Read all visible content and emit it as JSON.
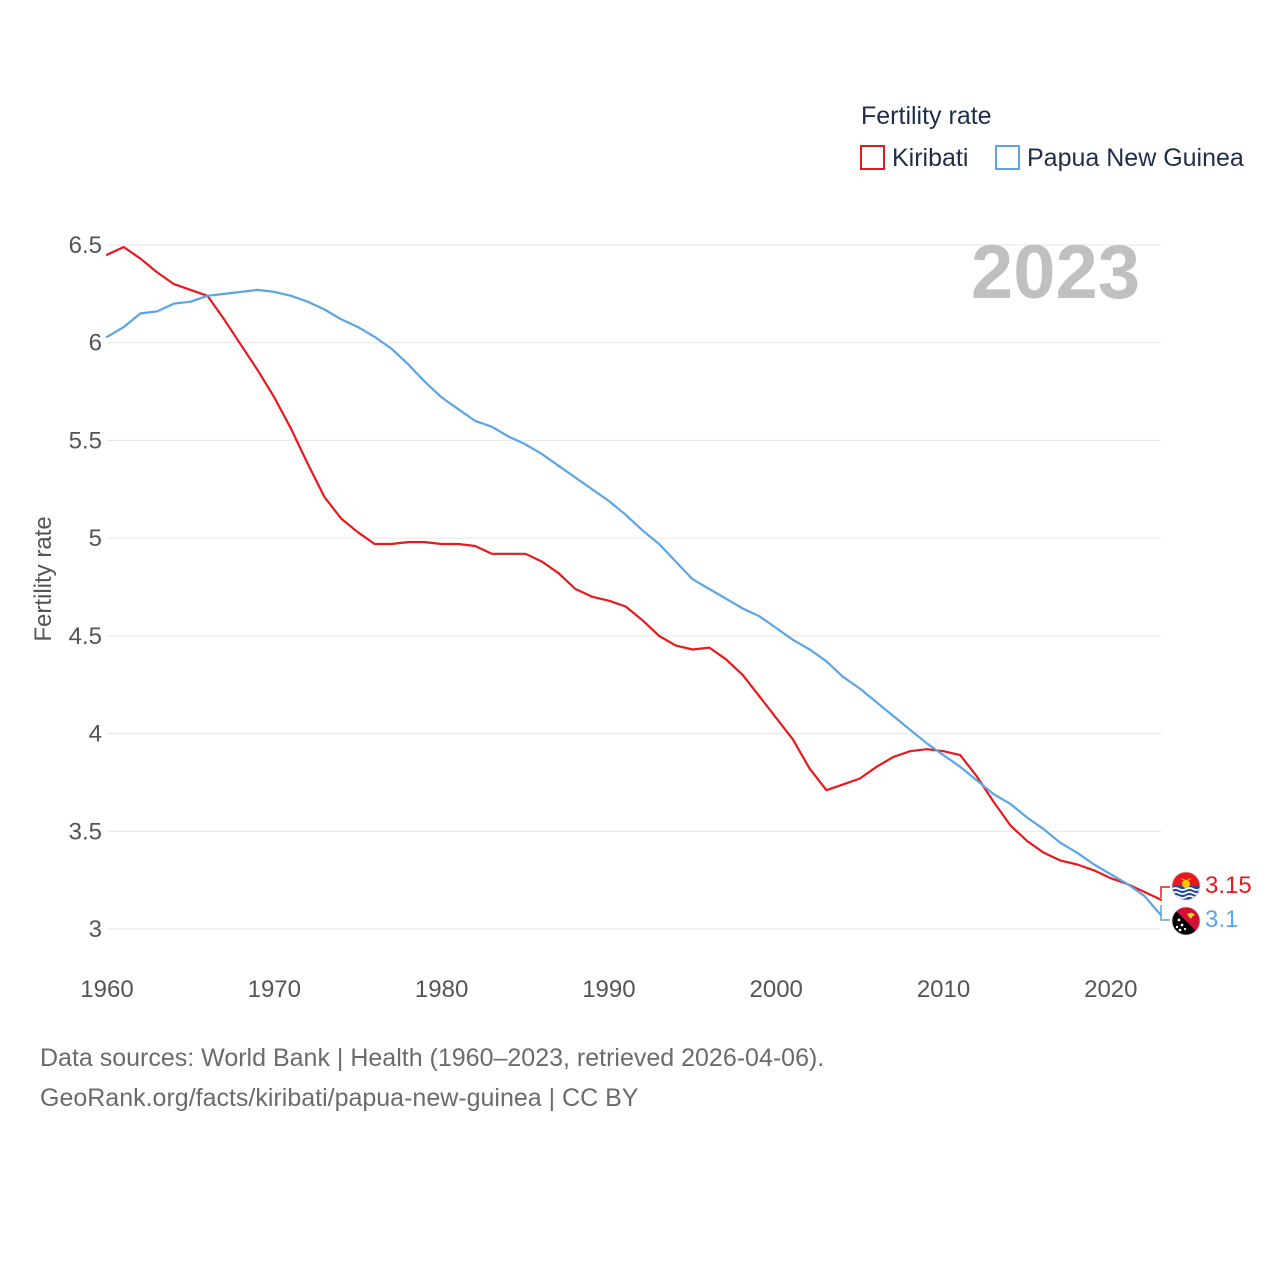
{
  "chart_data": {
    "type": "line",
    "title": "Fertility rate",
    "year_label": "2023",
    "ylabel": "Fertility rate",
    "xlabel": "",
    "xlim": [
      1960,
      2023
    ],
    "ylim": [
      3,
      6.5
    ],
    "x_ticks": [
      "1960",
      "1970",
      "1980",
      "1990",
      "2000",
      "2010",
      "2020"
    ],
    "y_ticks": [
      "3",
      "3.5",
      "4",
      "4.5",
      "5",
      "5.5",
      "6",
      "6.5"
    ],
    "grid": true,
    "legend_position": "top-right",
    "x": [
      1960,
      1961,
      1962,
      1963,
      1964,
      1965,
      1966,
      1967,
      1968,
      1969,
      1970,
      1971,
      1972,
      1973,
      1974,
      1975,
      1976,
      1977,
      1978,
      1979,
      1980,
      1981,
      1982,
      1983,
      1984,
      1985,
      1986,
      1987,
      1988,
      1989,
      1990,
      1991,
      1992,
      1993,
      1994,
      1995,
      1996,
      1997,
      1998,
      1999,
      2000,
      2001,
      2002,
      2003,
      2004,
      2005,
      2006,
      2007,
      2008,
      2009,
      2010,
      2011,
      2012,
      2013,
      2014,
      2015,
      2016,
      2017,
      2018,
      2019,
      2020,
      2021,
      2022,
      2023
    ],
    "series": [
      {
        "name": "Kiribati",
        "color": "#e8191c",
        "end_label": "3.15",
        "values": [
          6.45,
          6.49,
          6.43,
          6.36,
          6.3,
          6.27,
          6.24,
          6.12,
          5.99,
          5.86,
          5.72,
          5.56,
          5.38,
          5.21,
          5.1,
          5.03,
          4.97,
          4.97,
          4.98,
          4.98,
          4.97,
          4.97,
          4.96,
          4.92,
          4.92,
          4.92,
          4.88,
          4.82,
          4.74,
          4.7,
          4.68,
          4.65,
          4.58,
          4.5,
          4.45,
          4.43,
          4.44,
          4.38,
          4.3,
          4.19,
          4.08,
          3.97,
          3.82,
          3.71,
          3.74,
          3.77,
          3.83,
          3.88,
          3.91,
          3.92,
          3.91,
          3.89,
          3.78,
          3.65,
          3.53,
          3.45,
          3.39,
          3.35,
          3.33,
          3.3,
          3.26,
          3.23,
          3.19,
          3.15
        ]
      },
      {
        "name": "Papua New Guinea",
        "color": "#5aa5e6",
        "end_label": "3.1",
        "values": [
          6.03,
          6.08,
          6.15,
          6.16,
          6.2,
          6.21,
          6.24,
          6.25,
          6.26,
          6.27,
          6.26,
          6.24,
          6.21,
          6.17,
          6.12,
          6.08,
          6.03,
          5.97,
          5.89,
          5.8,
          5.72,
          5.66,
          5.6,
          5.57,
          5.52,
          5.48,
          5.43,
          5.37,
          5.31,
          5.25,
          5.19,
          5.12,
          5.04,
          4.97,
          4.88,
          4.79,
          4.74,
          4.69,
          4.64,
          4.6,
          4.54,
          4.48,
          4.43,
          4.37,
          4.29,
          4.23,
          4.16,
          4.09,
          4.02,
          3.95,
          3.89,
          3.83,
          3.76,
          3.69,
          3.64,
          3.57,
          3.51,
          3.44,
          3.39,
          3.33,
          3.28,
          3.23,
          3.17,
          3.07
        ]
      }
    ]
  },
  "source": {
    "line1": "Data sources: World Bank | Health (1960–2023, retrieved 2026-04-06).",
    "line2": "GeoRank.org/facts/kiribati/papua-new-guinea | CC BY"
  }
}
